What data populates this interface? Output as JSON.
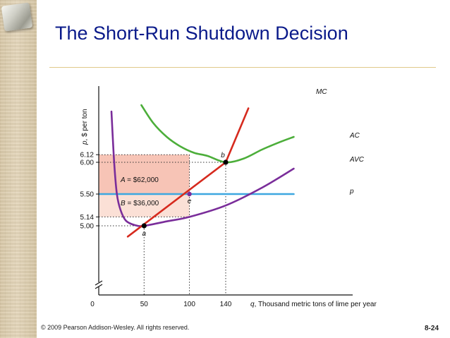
{
  "slide": {
    "title": "The Short-Run Shutdown Decision",
    "footer": "© 2009 Pearson Addison-Wesley. All rights reserved.",
    "slide_number": "8-24"
  },
  "colors": {
    "title": "#0a1a8a",
    "mc": "#d62a1e",
    "ac": "#4cae3a",
    "avc": "#7a2d9a",
    "p": "#3da7e0",
    "area_a": "#f7c4b6",
    "area_b": "#fbe0d6",
    "sidebar": "#dccbab",
    "rule": "#e0c98a"
  },
  "chart_data": {
    "type": "line",
    "xlabel": "q, Thousand metric tons of lime per year",
    "ylabel": "p, $ per ton",
    "origin_label": "0",
    "xlim": [
      0,
      168
    ],
    "ylim": [
      4.6,
      6.9
    ],
    "axis_break": true,
    "grid": false,
    "x_ticks": [
      50,
      100,
      140
    ],
    "y_ticks": [
      {
        "value": 5.0,
        "label": "5.00"
      },
      {
        "value": 5.14,
        "label": "5.14"
      },
      {
        "value": 5.5,
        "label": "5.50"
      },
      {
        "value": 6.0,
        "label": "6.00"
      },
      {
        "value": 6.12,
        "label": "6.12"
      }
    ],
    "series": [
      {
        "name": "MC",
        "color": "#d62a1e",
        "points": [
          [
            32,
            4.83
          ],
          [
            140,
            6.0
          ],
          [
            165,
            6.85
          ]
        ]
      },
      {
        "name": "AC",
        "color": "#4cae3a",
        "points": [
          [
            47,
            6.9
          ],
          [
            60,
            6.62
          ],
          [
            75,
            6.4
          ],
          [
            90,
            6.25
          ],
          [
            105,
            6.15
          ],
          [
            120,
            6.1
          ],
          [
            140,
            6.0
          ],
          [
            160,
            6.06
          ],
          [
            180,
            6.2
          ],
          [
            200,
            6.32
          ],
          [
            215,
            6.4
          ]
        ]
      },
      {
        "name": "AVC",
        "color": "#7a2d9a",
        "points": [
          [
            14,
            6.8
          ],
          [
            17,
            6.0
          ],
          [
            20,
            5.5
          ],
          [
            24,
            5.25
          ],
          [
            30,
            5.08
          ],
          [
            40,
            5.01
          ],
          [
            50,
            5.0
          ],
          [
            75,
            5.07
          ],
          [
            100,
            5.14
          ],
          [
            140,
            5.32
          ],
          [
            180,
            5.6
          ],
          [
            215,
            5.9
          ]
        ]
      },
      {
        "name": "p",
        "color": "#3da7e0",
        "points": [
          [
            0,
            5.5
          ],
          [
            215,
            5.5
          ]
        ]
      }
    ],
    "points": [
      {
        "label": "a",
        "x": 50,
        "y": 5.0
      },
      {
        "label": "b",
        "x": 140,
        "y": 6.0
      },
      {
        "label": "e",
        "x": 100,
        "y": 5.5
      }
    ],
    "areas": [
      {
        "label": "A = $62,000",
        "x": [
          0,
          100
        ],
        "y": [
          5.5,
          6.12
        ]
      },
      {
        "label": "B = $36,000",
        "x": [
          0,
          100
        ],
        "y": [
          5.14,
          5.5
        ]
      }
    ]
  }
}
